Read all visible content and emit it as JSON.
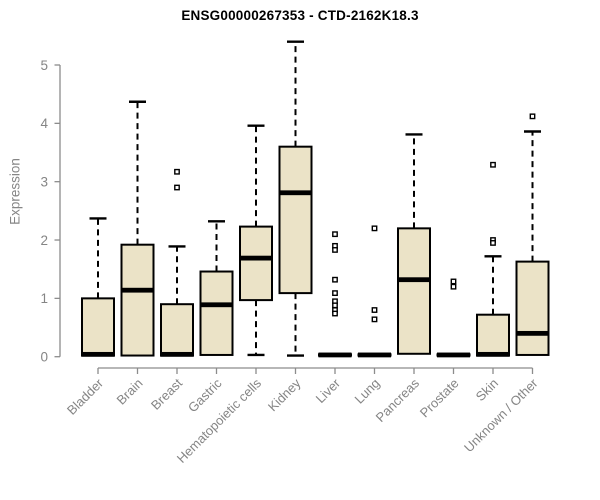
{
  "header": {
    "title": "ENSG00000267353 - CTD-2162K18.3"
  },
  "chart_data": {
    "type": "box",
    "title": "ENSG00000267353 - CTD-2162K18.3",
    "xlabel": "",
    "ylabel": "Expression",
    "ylim": [
      0,
      5.45
    ],
    "yticks": [
      0,
      1,
      2,
      3,
      4,
      5
    ],
    "grid": false,
    "legend": false,
    "categories": [
      "Bladder",
      "Brain",
      "Breast",
      "Gastric",
      "Hematopoietic cells",
      "Kidney",
      "Liver",
      "Lung",
      "Pancreas",
      "Prostate",
      "Skin",
      "Unknown / Other"
    ],
    "groups": [
      {
        "label": "Bladder",
        "whisker_low": 0.02,
        "q1": 0.02,
        "median": 0.04,
        "q3": 1.0,
        "whisker_high": 2.37,
        "outliers": []
      },
      {
        "label": "Brain",
        "whisker_low": 0.02,
        "q1": 0.02,
        "median": 1.14,
        "q3": 1.92,
        "whisker_high": 4.37,
        "outliers": []
      },
      {
        "label": "Breast",
        "whisker_low": 0.02,
        "q1": 0.02,
        "median": 0.04,
        "q3": 0.9,
        "whisker_high": 1.89,
        "outliers": [
          3.17,
          2.9
        ]
      },
      {
        "label": "Gastric",
        "whisker_low": 0.03,
        "q1": 0.03,
        "median": 0.89,
        "q3": 1.46,
        "whisker_high": 2.32,
        "outliers": []
      },
      {
        "label": "Hematopoietic cells",
        "whisker_low": 0.03,
        "q1": 0.97,
        "median": 1.69,
        "q3": 2.23,
        "whisker_high": 3.96,
        "outliers": []
      },
      {
        "label": "Kidney",
        "whisker_low": 0.02,
        "q1": 1.09,
        "median": 2.81,
        "q3": 3.6,
        "whisker_high": 5.4,
        "outliers": []
      },
      {
        "label": "Liver",
        "whisker_low": 0.02,
        "q1": 0.02,
        "median": 0.03,
        "q3": 0.04,
        "whisker_high": 0.04,
        "outliers": [
          2.1,
          1.9,
          1.83,
          1.32,
          1.09,
          0.95,
          0.88,
          0.8,
          0.74
        ]
      },
      {
        "label": "Lung",
        "whisker_low": 0.02,
        "q1": 0.02,
        "median": 0.03,
        "q3": 0.04,
        "whisker_high": 0.04,
        "outliers": [
          2.2,
          0.8,
          0.64
        ]
      },
      {
        "label": "Pancreas",
        "whisker_low": 0.05,
        "q1": 0.05,
        "median": 1.32,
        "q3": 2.2,
        "whisker_high": 3.81,
        "outliers": []
      },
      {
        "label": "Prostate",
        "whisker_low": 0.02,
        "q1": 0.02,
        "median": 0.03,
        "q3": 0.04,
        "whisker_high": 0.04,
        "outliers": [
          1.29,
          1.2
        ]
      },
      {
        "label": "Skin",
        "whisker_low": 0.02,
        "q1": 0.02,
        "median": 0.04,
        "q3": 0.72,
        "whisker_high": 1.72,
        "outliers": [
          3.29,
          2.0,
          1.95
        ]
      },
      {
        "label": "Unknown / Other",
        "whisker_low": 0.03,
        "q1": 0.03,
        "median": 0.4,
        "q3": 1.63,
        "whisker_high": 3.86,
        "outliers": [
          4.12
        ]
      }
    ],
    "colors": {
      "background": "#ffffff",
      "box_fill": "#ebe3c7",
      "box_stroke": "#000000",
      "median": "#000000",
      "axis": "#8c8c8c",
      "tick_label": "#858585",
      "title": "#000000"
    }
  }
}
